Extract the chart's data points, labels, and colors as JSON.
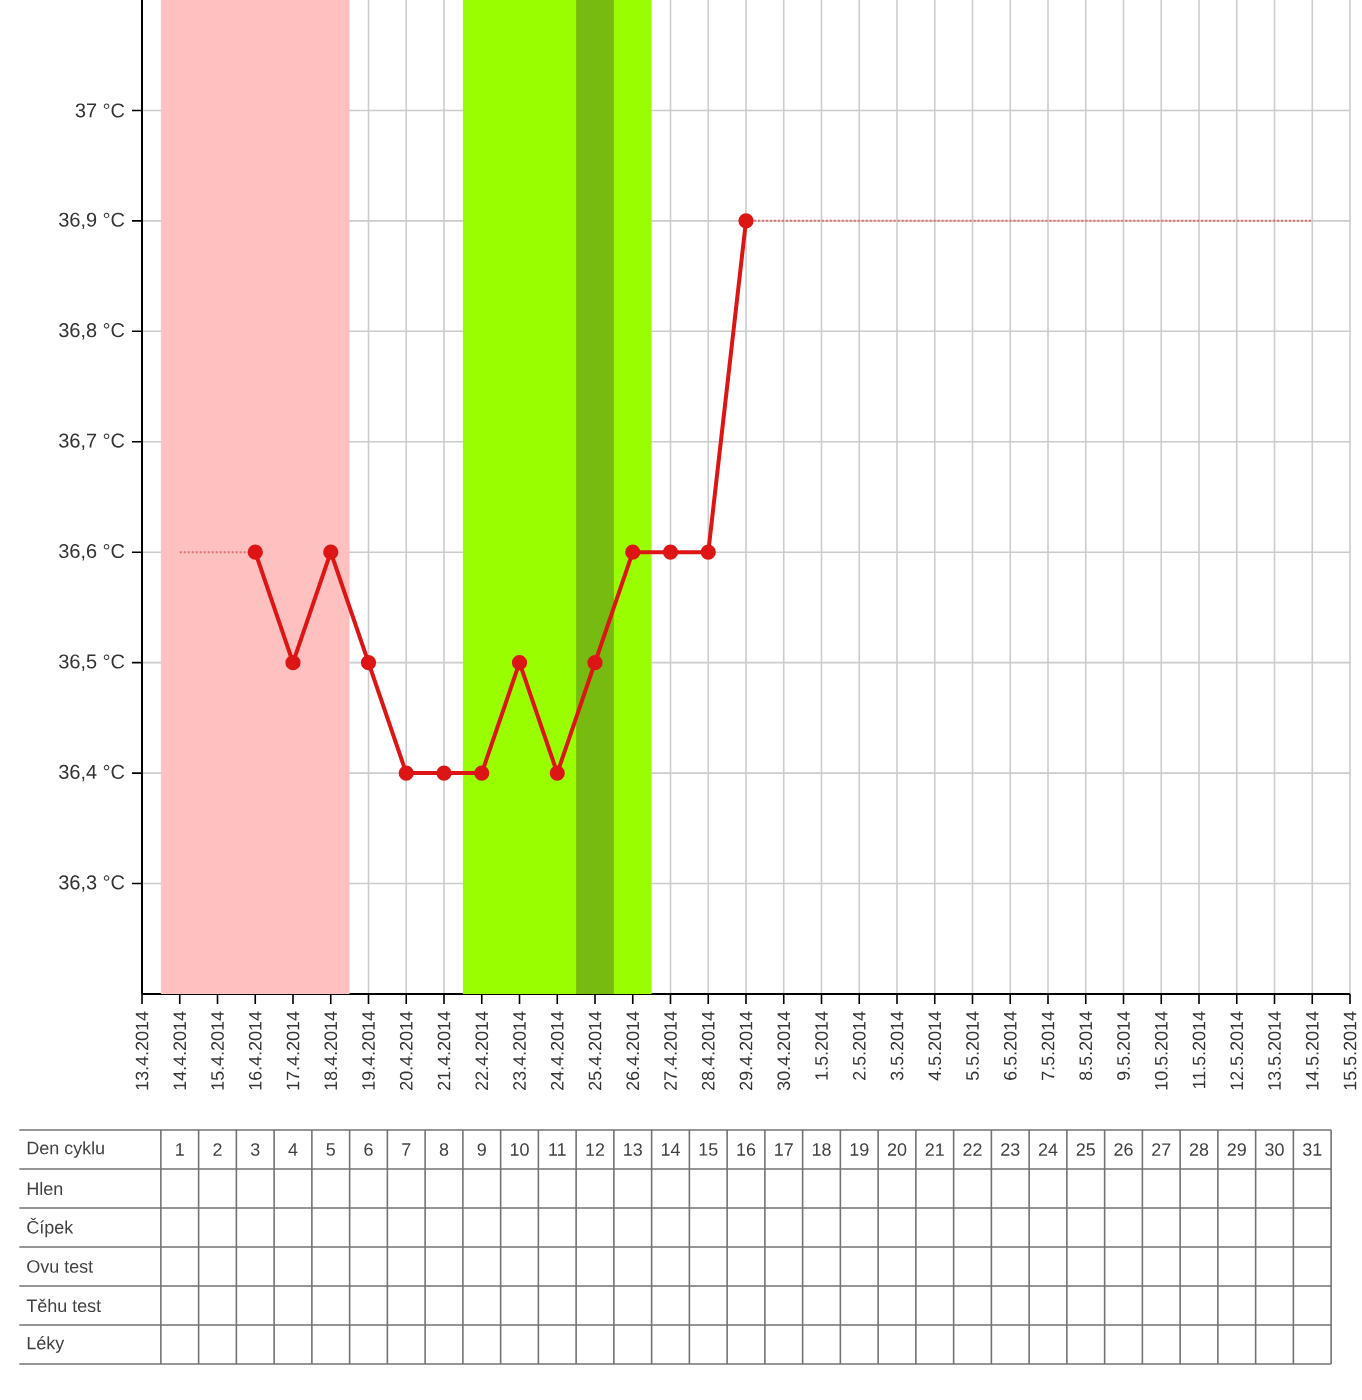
{
  "chart_data": {
    "type": "line",
    "xlim": [
      "2014-04-13",
      "2014-05-15"
    ],
    "ylim": [
      36.2,
      37.1
    ],
    "xticks": [
      {
        "value": "2014-04-13",
        "label": "13.4.2014"
      },
      {
        "value": "2014-04-14",
        "label": "14.4.2014"
      },
      {
        "value": "2014-04-15",
        "label": "15.4.2014"
      },
      {
        "value": "2014-04-16",
        "label": "16.4.2014"
      },
      {
        "value": "2014-04-17",
        "label": "17.4.2014"
      },
      {
        "value": "2014-04-18",
        "label": "18.4.2014"
      },
      {
        "value": "2014-04-19",
        "label": "19.4.2014"
      },
      {
        "value": "2014-04-20",
        "label": "20.4.2014"
      },
      {
        "value": "2014-04-21",
        "label": "21.4.2014"
      },
      {
        "value": "2014-04-22",
        "label": "22.4.2014"
      },
      {
        "value": "2014-04-23",
        "label": "23.4.2014"
      },
      {
        "value": "2014-04-24",
        "label": "24.4.2014"
      },
      {
        "value": "2014-04-25",
        "label": "25.4.2014"
      },
      {
        "value": "2014-04-26",
        "label": "26.4.2014"
      },
      {
        "value": "2014-04-27",
        "label": "27.4.2014"
      },
      {
        "value": "2014-04-28",
        "label": "28.4.2014"
      },
      {
        "value": "2014-04-29",
        "label": "29.4.2014"
      },
      {
        "value": "2014-04-30",
        "label": "30.4.2014"
      },
      {
        "value": "2014-05-01",
        "label": "1.5.2014"
      },
      {
        "value": "2014-05-02",
        "label": "2.5.2014"
      },
      {
        "value": "2014-05-03",
        "label": "3.5.2014"
      },
      {
        "value": "2014-05-04",
        "label": "4.5.2014"
      },
      {
        "value": "2014-05-05",
        "label": "5.5.2014"
      },
      {
        "value": "2014-05-06",
        "label": "6.5.2014"
      },
      {
        "value": "2014-05-07",
        "label": "7.5.2014"
      },
      {
        "value": "2014-05-08",
        "label": "8.5.2014"
      },
      {
        "value": "2014-05-09",
        "label": "9.5.2014"
      },
      {
        "value": "2014-05-10",
        "label": "10.5.2014"
      },
      {
        "value": "2014-05-11",
        "label": "11.5.2014"
      },
      {
        "value": "2014-05-12",
        "label": "12.5.2014"
      },
      {
        "value": "2014-05-13",
        "label": "13.5.2014"
      },
      {
        "value": "2014-05-14",
        "label": "14.5.2014"
      },
      {
        "value": "2014-05-15",
        "label": "15.5.2014"
      }
    ],
    "yticks": [
      {
        "value": 36.3,
        "label": "36,3 °C"
      },
      {
        "value": 36.4,
        "label": "36,4 °C"
      },
      {
        "value": 36.5,
        "label": "36,5 °C"
      },
      {
        "value": 36.6,
        "label": "36,6 °C"
      },
      {
        "value": 36.7,
        "label": "36,7 °C"
      },
      {
        "value": 36.8,
        "label": "36,8 °C"
      },
      {
        "value": 36.9,
        "label": "36,9 °C"
      },
      {
        "value": 37,
        "label": "37 °C"
      }
    ],
    "x2label": "Den cyklu",
    "x2lim": [
      -3.25,
      32
    ],
    "x2ticks": [
      1,
      2,
      3,
      4,
      5,
      6,
      7,
      8,
      9,
      10,
      11,
      12,
      13,
      14,
      15,
      16,
      17,
      18,
      19,
      20,
      21,
      22,
      23,
      24,
      25,
      26,
      27,
      28,
      29,
      30,
      31
    ],
    "annotations": [
      "Hlen",
      "Čípek",
      "Ovu test",
      "Těhu test",
      "Léky"
    ],
    "grid": true,
    "bands": [
      {
        "axis": "x",
        "from": "2014-04-13T12:00",
        "to": "2014-04-18T12:00",
        "color": "#ffc0c0"
      },
      {
        "axis": "x",
        "from": "2014-04-21T12:00",
        "to": "2014-04-26T12:00",
        "color": "#99ff00"
      },
      {
        "axis": "x",
        "from": "2014-04-24T12:00",
        "to": "2014-04-25T12:00",
        "color": "#77bb11"
      }
    ],
    "series": [
      {
        "color": "#e07070",
        "marker": "none",
        "line_style": "dotted",
        "x": [
          "2014-04-14",
          "2014-04-15",
          "2014-04-16"
        ],
        "values": [
          36.6,
          36.6,
          36.6
        ]
      },
      {
        "color": "#dd1515",
        "marker": "circle",
        "line_style": "solid",
        "x": [
          "2014-04-16",
          "2014-04-17",
          "2014-04-18",
          "2014-04-19",
          "2014-04-20",
          "2014-04-21",
          "2014-04-22",
          "2014-04-23",
          "2014-04-24",
          "2014-04-25",
          "2014-04-26",
          "2014-04-27",
          "2014-04-28",
          "2014-04-29"
        ],
        "values": [
          36.6,
          36.5,
          36.6,
          36.5,
          36.4,
          36.4,
          36.4,
          36.5,
          36.4,
          36.5,
          36.6,
          36.6,
          36.6,
          36.9
        ]
      },
      {
        "color": "#e07070",
        "marker": "none",
        "line_style": "dotted",
        "x": [
          "2014-04-29",
          "2014-04-30",
          "2014-05-01",
          "2014-05-02",
          "2014-05-03",
          "2014-05-04",
          "2014-05-05",
          "2014-05-06",
          "2014-05-07",
          "2014-05-08",
          "2014-05-09",
          "2014-05-10",
          "2014-05-11",
          "2014-05-12",
          "2014-05-13",
          "2014-05-14"
        ],
        "values": [
          36.9,
          36.9,
          36.9,
          36.9,
          36.9,
          36.9,
          36.9,
          36.9,
          36.9,
          36.9,
          36.9,
          36.9,
          36.9,
          36.9,
          36.9,
          36.9
        ]
      }
    ]
  }
}
